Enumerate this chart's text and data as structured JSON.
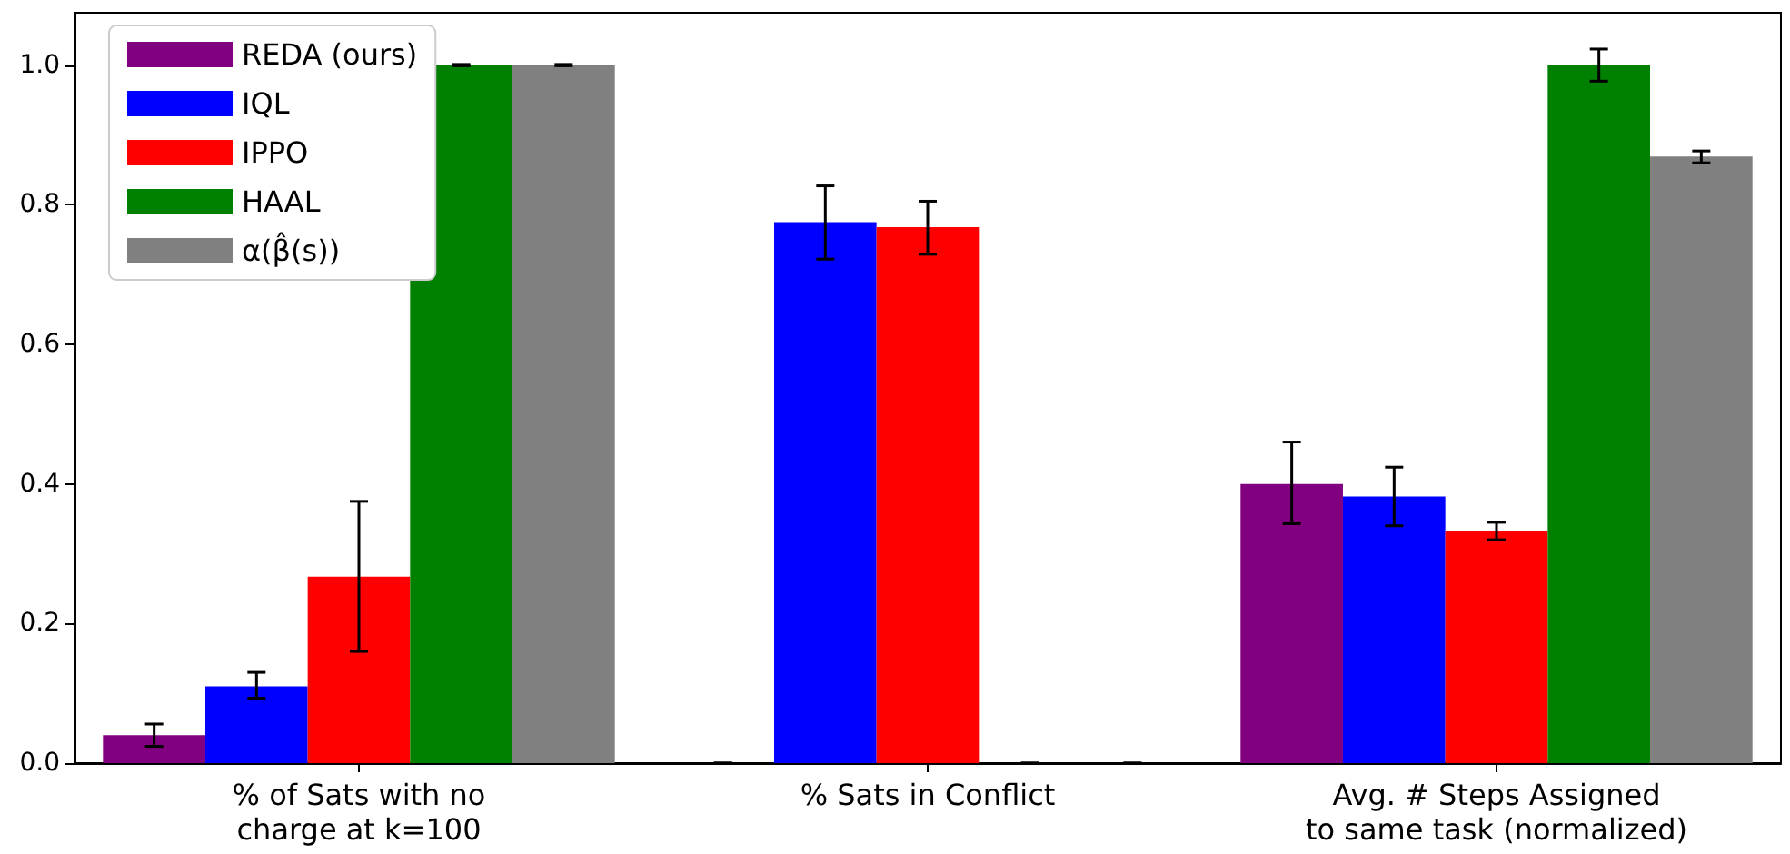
{
  "chart_data": {
    "type": "bar",
    "categories": [
      "% of Sats with no\ncharge at k=100",
      "% Sats in Conflict",
      "Avg. # Steps Assigned\nto same task (normalized)"
    ],
    "series": [
      {
        "name": "REDA (ours)",
        "color": "#800080",
        "values": [
          0.04,
          0,
          0.4
        ],
        "errors": [
          [
            0.024,
            0.056
          ],
          0,
          [
            0.343,
            0.46
          ]
        ]
      },
      {
        "name": "IQL",
        "color": "#0000ff",
        "values": [
          0.11,
          0.775,
          0.382
        ],
        "errors": [
          [
            0.093,
            0.13
          ],
          [
            0.722,
            0.827
          ],
          [
            0.34,
            0.424
          ]
        ]
      },
      {
        "name": "IPPO",
        "color": "#ff0000",
        "values": [
          0.267,
          0.768,
          0.333
        ],
        "errors": [
          [
            0.16,
            0.375
          ],
          [
            0.729,
            0.805
          ],
          [
            0.32,
            0.345
          ]
        ]
      },
      {
        "name": "HAAL",
        "color": "#008000",
        "values": [
          1.0,
          0,
          1.0
        ],
        "errors": [
          0.001,
          0,
          [
            0.977,
            1.023
          ]
        ]
      },
      {
        "name": "α(β̂(s))",
        "color": "#808080",
        "values": [
          1.0,
          0,
          0.869
        ],
        "errors": [
          0.001,
          0,
          [
            0.86,
            0.877
          ]
        ]
      }
    ],
    "ylim": [
      0,
      1.075
    ],
    "yticks": [
      {
        "value": 0,
        "label": "0.0"
      },
      0.2,
      0.4,
      0.6,
      0.8,
      {
        "value": 1,
        "label": "1.0"
      }
    ],
    "legend": "top left",
    "grid": false
  }
}
